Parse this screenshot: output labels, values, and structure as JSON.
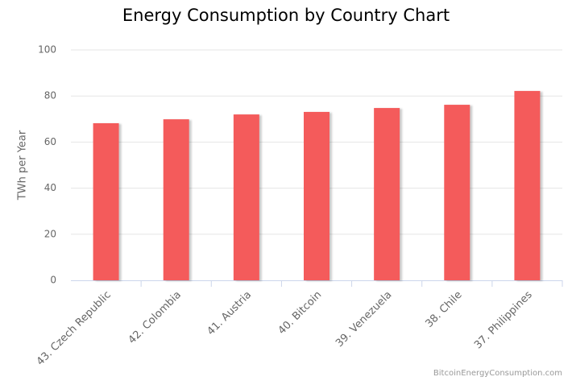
{
  "chart_data": {
    "type": "bar",
    "title": "Energy Consumption by Country Chart",
    "y_label": "TWh per Year",
    "categories": [
      "43. Czech Republic",
      "42. Colombia",
      "41. Austria",
      "40. Bitcoin",
      "39. Venezuela",
      "38. Chile",
      "37. Philippines"
    ],
    "values": [
      68.2,
      69.9,
      72.0,
      73.1,
      74.8,
      76.2,
      82.2
    ],
    "color": "#f45b5b",
    "ylim": [
      0,
      100
    ],
    "yticks": [
      0,
      20,
      40,
      60,
      80,
      100
    ],
    "grid": true,
    "credits": "BitcoinEnergyConsumption.com"
  }
}
